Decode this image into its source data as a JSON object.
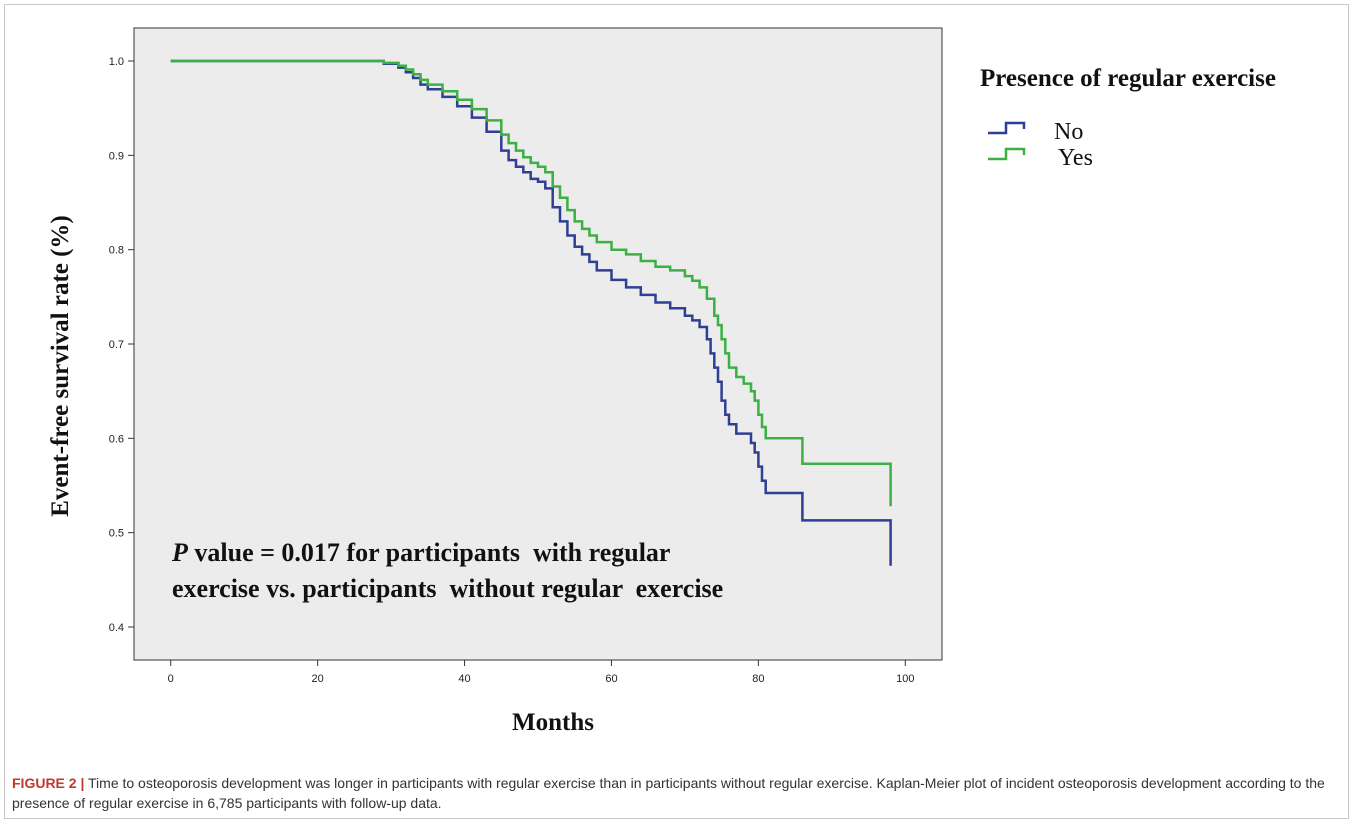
{
  "chart_data": {
    "type": "line",
    "step": true,
    "xlabel": "Months",
    "ylabel": "Event-free survival rate (%)",
    "xlim": [
      -5,
      105
    ],
    "ylim": [
      0.365,
      1.035
    ],
    "xticks": [
      0,
      20,
      40,
      60,
      80,
      100
    ],
    "yticks": [
      0.4,
      0.5,
      0.6,
      0.7,
      0.8,
      0.9,
      1.0
    ],
    "ytick_labels": [
      "0.4",
      "0.5",
      "0.6",
      "0.7",
      "0.8",
      "0.9",
      "1.0"
    ],
    "grid": false,
    "legend_title": "Presence of regular exercise",
    "legend_position": "right-outside",
    "annotation": {
      "p_symbol": "P",
      "line1_rest": " value = 0.017 for participants  with regular",
      "line2": "exercise vs. participants  without regular  exercise"
    },
    "series": [
      {
        "name": "No",
        "color": "#2e3f94",
        "x": [
          0,
          25,
          29,
          31,
          32,
          33,
          34,
          35,
          37,
          39,
          41,
          43,
          45,
          46,
          47,
          48,
          49,
          50,
          51,
          52,
          53,
          54,
          55,
          56,
          57,
          58,
          60,
          62,
          64,
          66,
          68,
          70,
          71,
          72,
          73,
          73.5,
          74,
          74.5,
          75,
          75.5,
          76,
          77,
          78,
          79,
          79.5,
          80,
          80.5,
          81,
          86,
          98
        ],
        "y": [
          1.0,
          1.0,
          0.997,
          0.993,
          0.988,
          0.982,
          0.975,
          0.97,
          0.962,
          0.952,
          0.94,
          0.925,
          0.905,
          0.895,
          0.888,
          0.882,
          0.875,
          0.872,
          0.865,
          0.845,
          0.83,
          0.815,
          0.803,
          0.795,
          0.787,
          0.778,
          0.768,
          0.76,
          0.752,
          0.744,
          0.738,
          0.73,
          0.725,
          0.718,
          0.705,
          0.69,
          0.675,
          0.66,
          0.64,
          0.625,
          0.615,
          0.605,
          0.605,
          0.595,
          0.585,
          0.57,
          0.555,
          0.542,
          0.513,
          0.465
        ]
      },
      {
        "name": "Yes",
        "color": "#3cb043",
        "x": [
          0,
          25,
          29,
          31,
          32,
          33,
          34,
          35,
          37,
          39,
          41,
          43,
          45,
          46,
          47,
          48,
          49,
          50,
          51,
          52,
          53,
          54,
          55,
          56,
          57,
          58,
          60,
          62,
          64,
          66,
          68,
          70,
          71,
          72,
          73,
          74,
          74.5,
          75,
          75.5,
          76,
          77,
          78,
          79,
          79.5,
          80,
          80.5,
          81,
          86,
          98
        ],
        "y": [
          1.0,
          1.0,
          0.998,
          0.995,
          0.991,
          0.986,
          0.98,
          0.975,
          0.968,
          0.959,
          0.949,
          0.937,
          0.922,
          0.913,
          0.905,
          0.898,
          0.892,
          0.888,
          0.882,
          0.867,
          0.855,
          0.842,
          0.83,
          0.822,
          0.815,
          0.808,
          0.8,
          0.795,
          0.788,
          0.782,
          0.778,
          0.772,
          0.767,
          0.76,
          0.748,
          0.73,
          0.72,
          0.705,
          0.69,
          0.675,
          0.665,
          0.658,
          0.65,
          0.64,
          0.625,
          0.612,
          0.6,
          0.573,
          0.528
        ]
      }
    ]
  },
  "caption": {
    "label": "FIGURE 2 |",
    "text": " Time to osteoporosis development was longer in participants with regular exercise than in participants without regular exercise. Kaplan-Meier plot of incident osteoporosis development according to the presence of regular exercise in 6,785 participants with follow-up data."
  }
}
